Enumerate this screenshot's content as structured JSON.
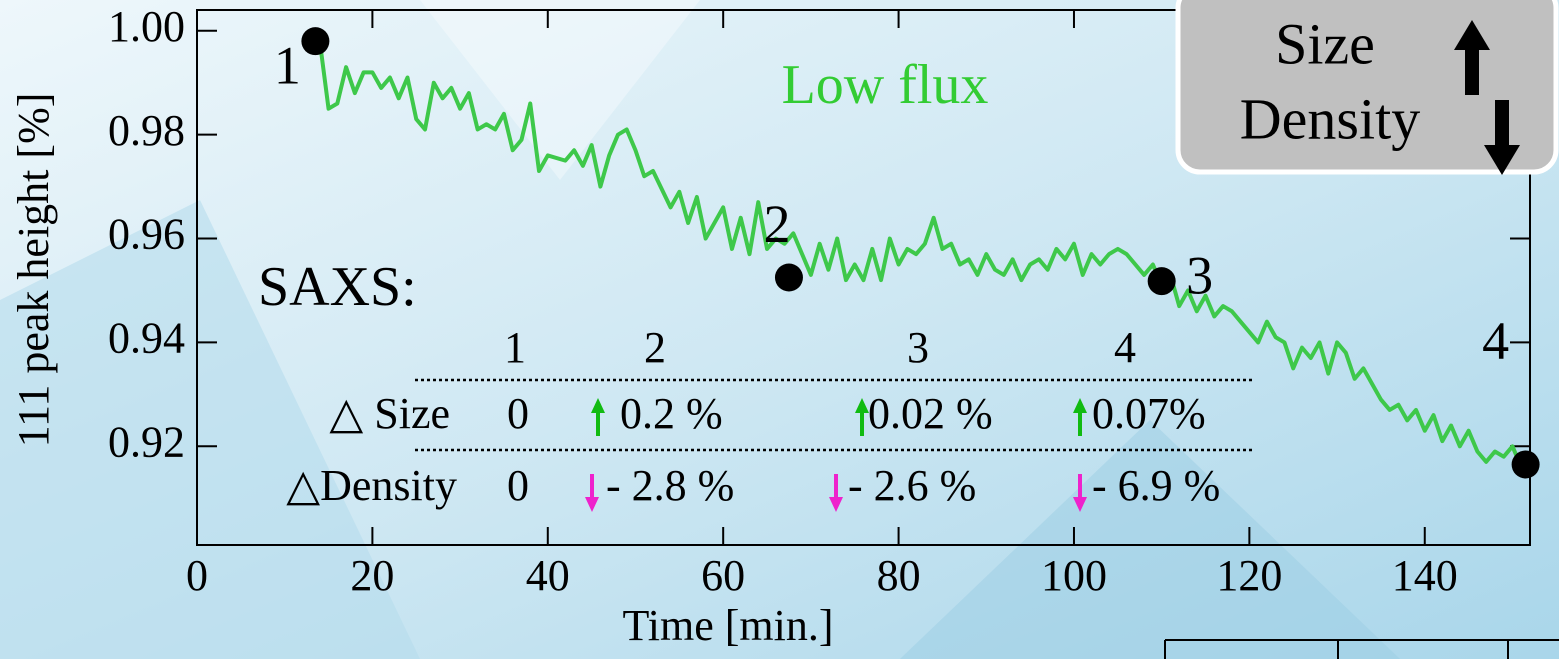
{
  "chart_data": {
    "type": "line",
    "title": "Low flux",
    "x_label": "Time [min.]",
    "y_label": "111 peak height [%]",
    "color": "#3ec84a",
    "x": [
      14,
      15,
      16,
      17,
      18,
      19,
      20,
      21,
      22,
      23,
      24,
      25,
      26,
      27,
      28,
      29,
      30,
      31,
      32,
      33,
      34,
      35,
      36,
      37,
      38,
      39,
      40,
      42,
      43,
      44,
      45,
      46,
      47,
      48,
      49,
      50,
      51,
      52,
      54,
      55,
      56,
      57,
      58,
      60,
      61,
      62,
      63,
      64,
      65,
      66,
      67,
      68,
      69,
      70,
      71,
      72,
      73,
      74,
      75,
      76,
      77,
      78,
      79,
      80,
      81,
      82,
      83,
      84,
      85,
      86,
      87,
      88,
      89,
      90,
      91,
      92,
      93,
      94,
      95,
      96,
      97,
      98,
      99,
      100,
      101,
      102,
      103,
      104,
      105,
      106,
      107,
      108,
      109,
      110,
      111,
      112,
      113,
      114,
      115,
      116,
      117,
      118,
      119,
      120,
      121,
      122,
      123,
      124,
      125,
      126,
      127,
      128,
      129,
      130,
      131,
      132,
      133,
      134,
      135,
      136,
      137,
      138,
      139,
      140,
      141,
      142,
      143,
      144,
      145,
      146,
      147,
      148,
      149,
      150,
      151
    ],
    "values": [
      0.998,
      0.985,
      0.986,
      0.993,
      0.988,
      0.992,
      0.992,
      0.989,
      0.991,
      0.987,
      0.991,
      0.983,
      0.981,
      0.99,
      0.987,
      0.989,
      0.985,
      0.988,
      0.981,
      0.982,
      0.981,
      0.984,
      0.977,
      0.979,
      0.986,
      0.973,
      0.976,
      0.975,
      0.977,
      0.974,
      0.978,
      0.97,
      0.976,
      0.98,
      0.981,
      0.977,
      0.972,
      0.973,
      0.966,
      0.969,
      0.963,
      0.968,
      0.96,
      0.966,
      0.958,
      0.964,
      0.957,
      0.967,
      0.958,
      0.96,
      0.959,
      0.961,
      0.957,
      0.953,
      0.959,
      0.954,
      0.96,
      0.952,
      0.955,
      0.952,
      0.958,
      0.952,
      0.96,
      0.955,
      0.958,
      0.957,
      0.959,
      0.964,
      0.958,
      0.959,
      0.955,
      0.956,
      0.953,
      0.957,
      0.954,
      0.953,
      0.956,
      0.952,
      0.955,
      0.956,
      0.954,
      0.958,
      0.956,
      0.959,
      0.953,
      0.957,
      0.955,
      0.957,
      0.958,
      0.957,
      0.955,
      0.953,
      0.955,
      0.951,
      0.953,
      0.947,
      0.95,
      0.946,
      0.949,
      0.945,
      0.947,
      0.946,
      0.944,
      0.942,
      0.94,
      0.944,
      0.941,
      0.94,
      0.935,
      0.939,
      0.937,
      0.94,
      0.934,
      0.94,
      0.938,
      0.933,
      0.935,
      0.932,
      0.929,
      0.927,
      0.928,
      0.925,
      0.927,
      0.923,
      0.926,
      0.921,
      0.924,
      0.92,
      0.923,
      0.919,
      0.917,
      0.919,
      0.918,
      0.92,
      0.916
    ],
    "markers": {
      "x": [
        13.5,
        67.5,
        110,
        151.5
      ],
      "y": [
        0.998,
        0.9525,
        0.9518,
        0.9165
      ],
      "labels": [
        "1",
        "2",
        "3",
        "4"
      ]
    },
    "xlim": [
      0,
      152
    ],
    "xticks": [
      0,
      20,
      40,
      60,
      80,
      100,
      120,
      140
    ],
    "ylim": [
      0.901,
      1.004
    ],
    "yticks": [
      {
        "value": 1,
        "label": "1.00"
      },
      0.98,
      0.96,
      0.94,
      0.92
    ],
    "saxs_title": "SAXS:",
    "saxs_table": {
      "header": [
        "1",
        "2",
        "3",
        "4"
      ],
      "rows": [
        {
          "label": "△ Size",
          "cells": [
            "0",
            "0.2 %",
            "0.02 %",
            "0.07%"
          ]
        },
        {
          "label": "△Density",
          "cells": [
            "0",
            "- 2.8 %",
            "- 2.6 %",
            "- 6.9 %"
          ]
        }
      ]
    },
    "box": [
      "Size",
      "Density"
    ]
  }
}
